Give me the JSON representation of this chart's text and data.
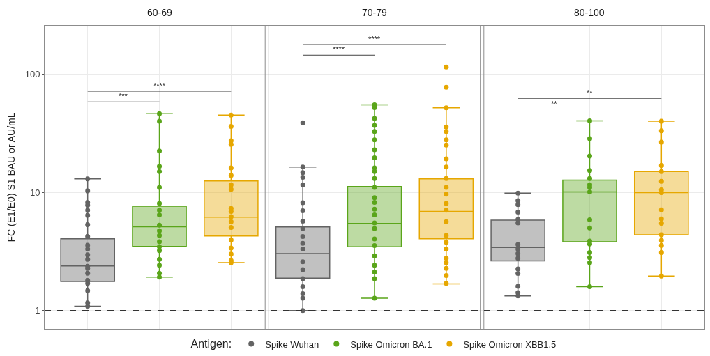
{
  "chart_data": {
    "type": "box",
    "ylabel": "FC (E1/E0) S1 BAU or AU/mL",
    "categories": [
      null,
      null,
      null,
      null,
      null,
      null,
      null,
      null,
      null
    ],
    "log": true,
    "ylim": [
      0.7,
      257
    ],
    "yticks": [
      1,
      10,
      100
    ],
    "grid": true,
    "tick_labels": "y",
    "marker": "circle",
    "legend": "bottom",
    "legend_title": "Antigen:",
    "ref_lines": [
      {
        "axis": "y",
        "value": 1,
        "line_style": "dashed",
        "color": "#333333"
      }
    ],
    "annotations": [
      "60-69",
      "70-79",
      "80-100",
      "***",
      "****",
      "****",
      "****",
      "**",
      "**"
    ],
    "series": [
      {
        "name": "Spike Wuhan",
        "color": "#636363",
        "boxes": [
          {
            "low": 1.09,
            "q1": 1.76,
            "median": 2.38,
            "q3": 4.05,
            "high": 13.0
          },
          null,
          null,
          {
            "low": 1.0,
            "q1": 1.88,
            "median": 3.03,
            "q3": 5.1,
            "high": 16.4
          },
          null,
          null,
          {
            "low": 1.33,
            "q1": 2.63,
            "median": 3.41,
            "q3": 5.82,
            "high": 9.84
          },
          null,
          null
        ]
      },
      {
        "name": "Spike Omicron BA.1",
        "color": "#5aa51a",
        "boxes": [
          null,
          {
            "low": 1.92,
            "q1": 3.49,
            "median": 5.12,
            "q3": 7.64,
            "high": 46.3
          },
          null,
          null,
          {
            "low": 1.27,
            "q1": 3.46,
            "median": 5.45,
            "q3": 11.2,
            "high": 55
          },
          null,
          null,
          {
            "low": 1.59,
            "q1": 3.82,
            "median": 10.1,
            "q3": 12.7,
            "high": 40.3
          },
          null
        ]
      },
      {
        "name": "Spike Omicron XBB1.5",
        "color": "#e6a700",
        "boxes": [
          null,
          null,
          {
            "low": 2.54,
            "q1": 4.28,
            "median": 6.17,
            "q3": 12.5,
            "high": 45.1
          },
          null,
          null,
          {
            "low": 1.68,
            "q1": 4.05,
            "median": 6.9,
            "q3": 13.0,
            "high": 52
          },
          null,
          null,
          {
            "low": 1.96,
            "q1": 4.38,
            "median": 9.94,
            "q3": 15.0,
            "high": 40
          }
        ]
      },
      {
        "type": "scatter",
        "colors": [
          "#636363",
          "#5aa51a",
          "#e6a700",
          "#636363",
          "#5aa51a",
          "#e6a700",
          "#636363",
          "#5aa51a",
          "#e6a700"
        ],
        "values": [
          13.0,
          46.3,
          45.1,
          38.8,
          55.1,
          115,
          9.84,
          40.3,
          40
        ]
      },
      {
        "type": "scatter",
        "colors": [
          "#636363",
          "#5aa51a",
          "#e6a700",
          "#636363",
          "#5aa51a",
          "#e6a700",
          "#636363",
          "#5aa51a",
          "#e6a700"
        ],
        "values": [
          10.3,
          40,
          36.1,
          16.4,
          52.2,
          77.6,
          8.5,
          28.5,
          33.2
        ]
      },
      {
        "type": "scatter",
        "colors": [
          "#636363",
          "#5aa51a",
          "#e6a700",
          "#636363",
          "#5aa51a",
          "#e6a700",
          "#636363",
          "#5aa51a",
          "#e6a700"
        ],
        "values": [
          8.2,
          22.4,
          27.4,
          14.7,
          42.2,
          52,
          7.88,
          20.3,
          26.6
        ]
      },
      {
        "type": "scatter",
        "colors": [
          "#636363",
          "#5aa51a",
          "#e6a700",
          "#636363",
          "#5aa51a",
          "#e6a700",
          "#636363",
          "#5aa51a",
          "#e6a700"
        ],
        "values": [
          7.8,
          16.6,
          25.5,
          13.4,
          36.9,
          35.8,
          6.81,
          15.3,
          16.9
        ]
      },
      {
        "type": "scatter",
        "colors": [
          "#636363",
          "#5aa51a",
          "#e6a700",
          "#636363",
          "#5aa51a",
          "#e6a700",
          "#636363",
          "#5aa51a",
          "#e6a700"
        ],
        "values": [
          7.05,
          15.0,
          16.1,
          11.6,
          32.7,
          32.7,
          5.9,
          13.1,
          15.0
        ]
      },
      {
        "type": "scatter",
        "colors": [
          "#636363",
          "#5aa51a",
          "#e6a700",
          "#636363",
          "#5aa51a",
          "#e6a700",
          "#636363",
          "#5aa51a",
          "#e6a700"
        ],
        "values": [
          6.4,
          11.0,
          13.9,
          8.17,
          27.8,
          27.8,
          5.52,
          11.6,
          12.4
        ]
      },
      {
        "type": "scatter",
        "colors": [
          "#636363",
          "#5aa51a",
          "#e6a700",
          "#636363",
          "#5aa51a",
          "#e6a700",
          "#636363",
          "#5aa51a",
          "#e6a700"
        ],
        "values": [
          5.33,
          8.06,
          11.6,
          6.99,
          22.9,
          25.1,
          3.62,
          11.0,
          10.5
        ]
      },
      {
        "type": "scatter",
        "colors": [
          "#636363",
          "#5aa51a",
          "#e6a700",
          "#636363",
          "#5aa51a",
          "#e6a700",
          "#636363",
          "#5aa51a",
          "#e6a700"
        ],
        "values": [
          4.23,
          7.05,
          10.6,
          5.7,
          19.6,
          19.2,
          3.31,
          10.1,
          9.94
        ]
      },
      {
        "type": "scatter",
        "colors": [
          "#636363",
          "#5aa51a",
          "#e6a700",
          "#636363",
          "#5aa51a",
          "#e6a700",
          "#636363",
          "#5aa51a",
          "#e6a700"
        ],
        "values": [
          3.57,
          6.45,
          7.31,
          4.94,
          16.1,
          16.4,
          3.03,
          5.85,
          7.11
        ]
      },
      {
        "type": "scatter",
        "colors": [
          "#636363",
          "#5aa51a",
          "#e6a700",
          "#636363",
          "#5aa51a",
          "#e6a700",
          "#636363",
          "#5aa51a",
          "#e6a700"
        ],
        "values": [
          3.31,
          5.28,
          6.9,
          4.23,
          15.0,
          13.1,
          2.77,
          4.99,
          5.96
        ]
      },
      {
        "type": "scatter",
        "colors": [
          "#636363",
          "#5aa51a",
          "#e6a700",
          "#636363",
          "#5aa51a",
          "#e6a700",
          "#636363",
          "#5aa51a",
          "#e6a700"
        ],
        "values": [
          2.96,
          4.73,
          6.22,
          3.7,
          13.1,
          11.0,
          2.25,
          3.87,
          5.47
        ]
      },
      {
        "type": "scatter",
        "colors": [
          "#636363",
          "#5aa51a",
          "#e6a700",
          "#636363",
          "#5aa51a",
          "#e6a700",
          "#636363",
          "#5aa51a",
          "#e6a700"
        ],
        "values": [
          2.71,
          4.32,
          5.65,
          3.31,
          11.0,
          9.64,
          2.06,
          3.65,
          4.38
        ]
      },
      {
        "type": "scatter",
        "colors": [
          "#636363",
          "#5aa51a",
          "#e6a700",
          "#636363",
          "#5aa51a",
          "#e6a700",
          "#636363",
          "#5aa51a",
          "#e6a700"
        ],
        "values": [
          2.37,
          3.82,
          5.05,
          2.59,
          9.01,
          8.06,
          1.6,
          3.1,
          3.92
        ]
      },
      {
        "type": "scatter",
        "colors": [
          "#636363",
          "#5aa51a",
          "#e6a700",
          "#636363",
          "#5aa51a",
          "#e6a700",
          "#636363",
          "#5aa51a",
          "#e6a700"
        ],
        "values": [
          2.27,
          3.46,
          3.95,
          2.22,
          8.24,
          7.05,
          1.42,
          2.81,
          3.56
        ]
      },
      {
        "type": "scatter",
        "colors": [
          "#636363",
          "#5aa51a",
          "#e6a700",
          "#636363",
          "#5aa51a",
          "#e6a700",
          "#636363",
          "#5aa51a",
          "#e6a700"
        ],
        "values": [
          2.07,
          3.21,
          3.38,
          1.86,
          7.21,
          5.65,
          1.33,
          2.54,
          3.1
        ]
      },
      {
        "type": "scatter",
        "colors": [
          "#636363",
          "#5aa51a",
          "#e6a700",
          "#636363",
          "#5aa51a",
          "#e6a700",
          "#636363",
          "#5aa51a",
          "#e6a700"
        ],
        "values": [
          1.8,
          2.71,
          3.0,
          1.59,
          6.45,
          4.32,
          null,
          1.59,
          1.96
        ]
      },
      {
        "type": "scatter",
        "colors": [
          "#636363",
          "#5aa51a",
          "#e6a700",
          "#636363",
          "#5aa51a",
          "#e6a700",
          "#636363",
          "#5aa51a",
          "#e6a700"
        ],
        "values": [
          1.7,
          2.42,
          2.65,
          1.39,
          5.52,
          3.78,
          null,
          null,
          null
        ]
      },
      {
        "type": "scatter",
        "colors": [
          "#636363",
          "#5aa51a",
          "#e6a700",
          "#636363",
          "#5aa51a",
          "#e6a700",
          "#636363",
          "#5aa51a",
          "#e6a700"
        ],
        "values": [
          1.47,
          2.07,
          2.54,
          1.27,
          4.94,
          3.31,
          null,
          null,
          null
        ]
      },
      {
        "type": "scatter",
        "colors": [
          "#636363",
          "#5aa51a",
          "#e6a700",
          "#636363",
          "#5aa51a",
          "#e6a700",
          "#636363",
          "#5aa51a",
          "#e6a700"
        ],
        "values": [
          1.16,
          1.92,
          null,
          1.0,
          4.04,
          2.77,
          null,
          null,
          null
        ]
      },
      {
        "type": "scatter",
        "colors": [
          "#636363",
          "#5aa51a",
          "#e6a700",
          "#636363",
          "#5aa51a",
          "#e6a700",
          "#636363",
          "#5aa51a",
          "#e6a700"
        ],
        "values": [
          1.09,
          null,
          null,
          null,
          3.54,
          2.54,
          null,
          null,
          null
        ]
      },
      {
        "type": "scatter",
        "colors": [
          "#636363",
          "#5aa51a",
          "#e6a700",
          "#636363",
          "#5aa51a",
          "#e6a700",
          "#636363",
          "#5aa51a",
          "#e6a700"
        ],
        "values": [
          null,
          null,
          null,
          null,
          2.9,
          2.27,
          null,
          null,
          null
        ]
      },
      {
        "type": "scatter",
        "colors": [
          "#636363",
          "#5aa51a",
          "#e6a700",
          "#636363",
          "#5aa51a",
          "#e6a700",
          "#636363",
          "#5aa51a",
          "#e6a700"
        ],
        "values": [
          null,
          null,
          null,
          null,
          2.42,
          1.98,
          null,
          null,
          null
        ]
      },
      {
        "type": "scatter",
        "colors": [
          "#636363",
          "#5aa51a",
          "#e6a700",
          "#636363",
          "#5aa51a",
          "#e6a700",
          "#636363",
          "#5aa51a",
          "#e6a700"
        ],
        "values": [
          null,
          null,
          null,
          null,
          2.12,
          1.7,
          null,
          null,
          null
        ]
      },
      {
        "type": "scatter",
        "colors": [
          "#636363",
          "#5aa51a",
          "#e6a700",
          "#636363",
          "#5aa51a",
          "#e6a700",
          "#636363",
          "#5aa51a",
          "#e6a700"
        ],
        "values": [
          null,
          null,
          null,
          null,
          1.86,
          null,
          null,
          null,
          null
        ]
      },
      {
        "type": "scatter",
        "colors": [
          "#636363",
          "#5aa51a",
          "#e6a700",
          "#636363",
          "#5aa51a",
          "#e6a700",
          "#636363",
          "#5aa51a",
          "#e6a700"
        ],
        "values": [
          null,
          null,
          null,
          null,
          1.27,
          null,
          null,
          null,
          null
        ]
      }
    ]
  }
}
